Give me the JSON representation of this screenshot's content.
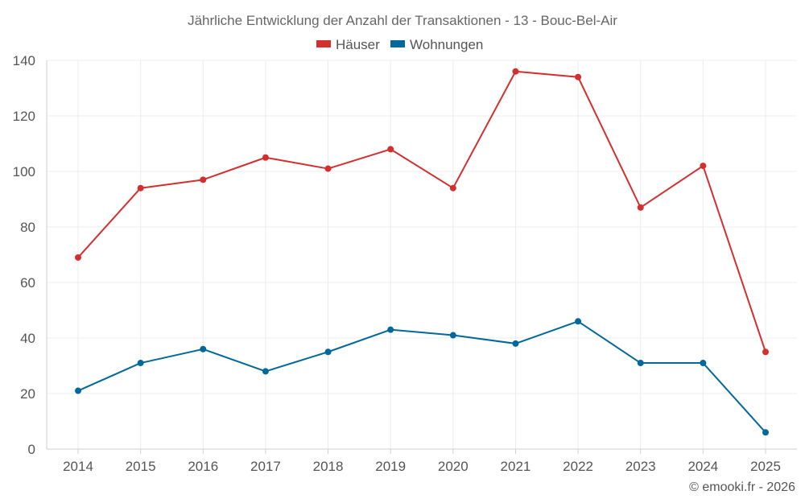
{
  "chart_data": {
    "type": "line",
    "title": "Jährliche Entwicklung der Anzahl der Transaktionen - 13 - Bouc-Bel-Air",
    "categories": [
      "2014",
      "2015",
      "2016",
      "2017",
      "2018",
      "2019",
      "2020",
      "2021",
      "2022",
      "2023",
      "2024",
      "2025"
    ],
    "series": [
      {
        "name": "Häuser",
        "color": "#d32f2f",
        "values": [
          69,
          94,
          97,
          105,
          101,
          108,
          94,
          136,
          134,
          87,
          102,
          35
        ]
      },
      {
        "name": "Wohnungen",
        "color": "#01689b",
        "values": [
          21,
          31,
          36,
          28,
          35,
          43,
          41,
          38,
          46,
          31,
          31,
          6
        ]
      }
    ],
    "ylim": [
      0,
      140
    ],
    "yticks": [
      0,
      20,
      40,
      60,
      80,
      100,
      120,
      140
    ],
    "xlabel": "",
    "ylabel": "",
    "grid": true,
    "legend": "top-center",
    "credit": "© emooki.fr - 2026"
  }
}
